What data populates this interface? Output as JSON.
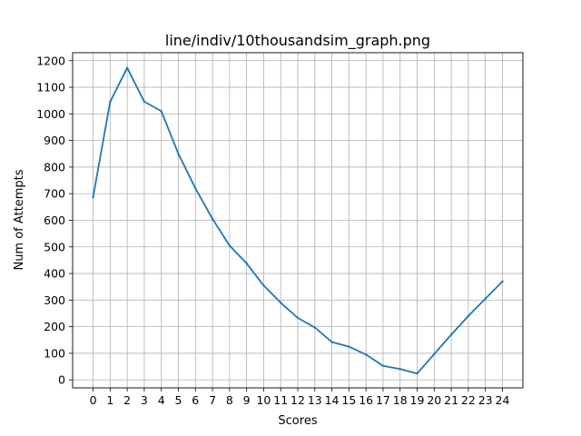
{
  "chart_data": {
    "type": "line",
    "title": "line/indiv/10thousandsim_graph.png",
    "xlabel": "Scores",
    "ylabel": "Num of Attempts",
    "x": [
      0,
      1,
      2,
      3,
      4,
      5,
      6,
      7,
      8,
      9,
      10,
      11,
      12,
      13,
      14,
      15,
      16,
      17,
      18,
      19,
      20,
      21,
      22,
      23,
      24
    ],
    "series": [
      {
        "values": [
          686,
          1045,
          1173,
          1046,
          1010,
          850,
          720,
          605,
          505,
          438,
          355,
          290,
          233,
          197,
          142,
          125,
          95,
          53,
          41,
          24,
          97,
          170,
          240,
          305,
          370
        ]
      }
    ],
    "xlim": [
      -1.2,
      25.2
    ],
    "ylim": [
      -30,
      1230
    ],
    "xticks": [
      0,
      1,
      2,
      3,
      4,
      5,
      6,
      7,
      8,
      9,
      10,
      11,
      12,
      13,
      14,
      15,
      16,
      17,
      18,
      19,
      20,
      21,
      22,
      23,
      24
    ],
    "yticks": [
      0,
      100,
      200,
      300,
      400,
      500,
      600,
      700,
      800,
      900,
      1000,
      1100,
      1200
    ],
    "grid": true,
    "line_color": "#1f77b4"
  }
}
